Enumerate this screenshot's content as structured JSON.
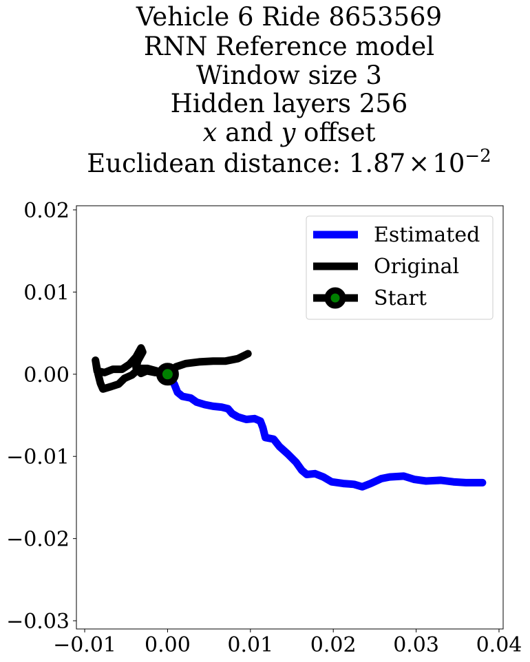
{
  "chart_data": {
    "type": "line",
    "title_lines": [
      "Vehicle 6 Ride 8653569",
      "RNN Reference model",
      "Window size 3",
      "Hidden layers 256"
    ],
    "title_offset": {
      "x_var": "x",
      "middle": " and ",
      "y_var": "y",
      "suffix": " offset"
    },
    "title_distance": {
      "prefix": "Euclidean distance: ",
      "mantissa": "1.87",
      "times": "×",
      "base": "10",
      "exponent": "−2"
    },
    "xlim": [
      -0.011,
      0.0405
    ],
    "ylim": [
      -0.031,
      0.0205
    ],
    "xticks": [
      -0.01,
      0.0,
      0.01,
      0.02,
      0.03,
      0.04
    ],
    "xtick_labels": [
      "−0.01",
      "0.00",
      "0.01",
      "0.02",
      "0.03",
      "0.04"
    ],
    "yticks": [
      0.02,
      0.01,
      0.0,
      -0.01,
      -0.02,
      -0.03
    ],
    "ytick_labels": [
      "0.02",
      "0.01",
      "0.00",
      "−0.01",
      "−0.02",
      "−0.03"
    ],
    "grid": false,
    "legend_position": "top-right",
    "series": [
      {
        "name": "Estimated",
        "color": "#0000ff",
        "points": [
          [
            0.0,
            0.0
          ],
          [
            0.0008,
            -0.0012
          ],
          [
            0.0012,
            -0.0022
          ],
          [
            0.0018,
            -0.0027
          ],
          [
            0.0028,
            -0.0029
          ],
          [
            0.0035,
            -0.0034
          ],
          [
            0.0045,
            -0.0037
          ],
          [
            0.0055,
            -0.0039
          ],
          [
            0.0065,
            -0.004
          ],
          [
            0.0073,
            -0.0042
          ],
          [
            0.0078,
            -0.0048
          ],
          [
            0.0085,
            -0.0052
          ],
          [
            0.0095,
            -0.0055
          ],
          [
            0.0105,
            -0.0054
          ],
          [
            0.0112,
            -0.0057
          ],
          [
            0.0115,
            -0.0065
          ],
          [
            0.0118,
            -0.0077
          ],
          [
            0.0128,
            -0.0079
          ],
          [
            0.0135,
            -0.0088
          ],
          [
            0.0145,
            -0.0097
          ],
          [
            0.0155,
            -0.0107
          ],
          [
            0.0162,
            -0.0117
          ],
          [
            0.0168,
            -0.0122
          ],
          [
            0.0178,
            -0.0121
          ],
          [
            0.0188,
            -0.0125
          ],
          [
            0.0198,
            -0.0131
          ],
          [
            0.0212,
            -0.0133
          ],
          [
            0.0225,
            -0.0134
          ],
          [
            0.0235,
            -0.0137
          ],
          [
            0.0245,
            -0.0133
          ],
          [
            0.0258,
            -0.0127
          ],
          [
            0.0268,
            -0.0125
          ],
          [
            0.0285,
            -0.0124
          ],
          [
            0.0298,
            -0.0128
          ],
          [
            0.0312,
            -0.013
          ],
          [
            0.033,
            -0.0129
          ],
          [
            0.0345,
            -0.0131
          ],
          [
            0.036,
            -0.0132
          ],
          [
            0.0372,
            -0.0132
          ],
          [
            0.038,
            -0.0132
          ]
        ]
      },
      {
        "name": "Original",
        "color": "#000000",
        "points": [
          [
            0.0,
            0.0
          ],
          [
            -0.0008,
            0.0003
          ],
          [
            -0.0015,
            0.0002
          ],
          [
            -0.0025,
            0.0004
          ],
          [
            -0.0032,
            0.0001
          ],
          [
            -0.0038,
            0.0008
          ],
          [
            -0.0036,
            0.0016
          ],
          [
            -0.003,
            0.0027
          ],
          [
            -0.0032,
            0.0032
          ],
          [
            -0.0038,
            0.0021
          ],
          [
            -0.0046,
            0.0012
          ],
          [
            -0.0055,
            0.0006
          ],
          [
            -0.0066,
            0.0006
          ],
          [
            -0.0076,
            0.0002
          ],
          [
            -0.0085,
            0.0004
          ],
          [
            -0.0087,
            0.0017
          ],
          [
            -0.0084,
            0.0001
          ],
          [
            -0.0081,
            -0.0011
          ],
          [
            -0.0078,
            -0.0018
          ],
          [
            -0.0068,
            -0.0015
          ],
          [
            -0.0059,
            -0.0012
          ],
          [
            -0.0052,
            -0.0005
          ],
          [
            -0.0043,
            -0.0001
          ],
          [
            -0.0034,
            0.0007
          ],
          [
            -0.0024,
            0.0007
          ],
          [
            -0.0013,
            0.0004
          ],
          [
            -0.0005,
            0.0001
          ],
          [
            0.0005,
            0.0004
          ],
          [
            0.001,
            0.0009
          ],
          [
            0.0022,
            0.0013
          ],
          [
            0.0038,
            0.0015
          ],
          [
            0.0055,
            0.0016
          ],
          [
            0.007,
            0.0016
          ],
          [
            0.0085,
            0.0019
          ],
          [
            0.0097,
            0.0025
          ]
        ]
      }
    ],
    "start": {
      "name": "Start",
      "x": 0.0,
      "y": 0.0,
      "marker_color": "#008000",
      "edge_color": "#000000"
    }
  }
}
